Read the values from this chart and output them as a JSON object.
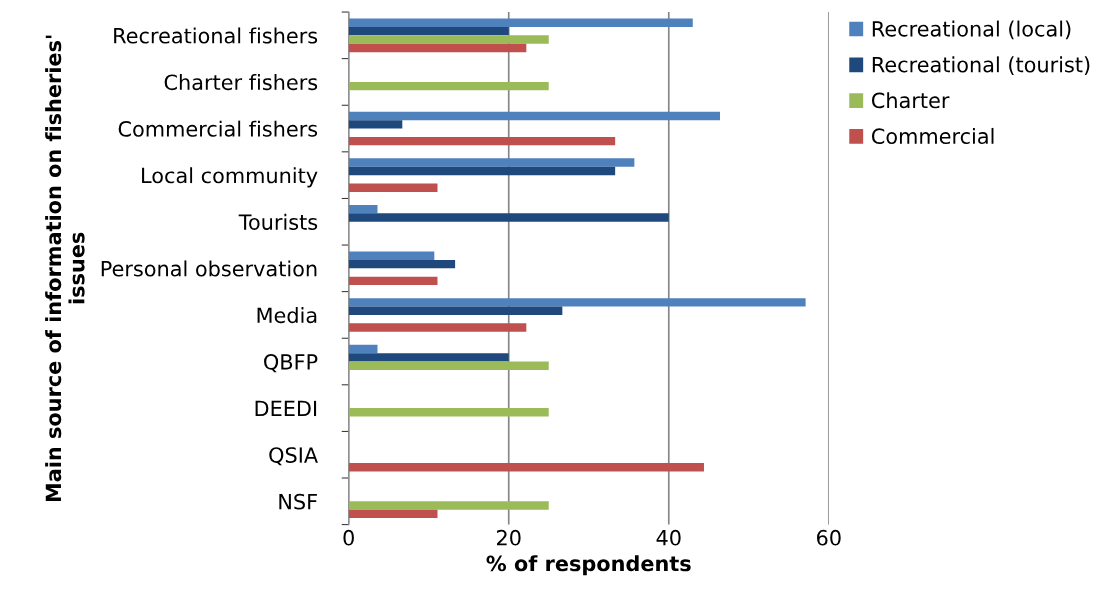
{
  "chart_data": {
    "type": "bar",
    "orientation": "horizontal",
    "xlabel": "% of respondents",
    "ylabel": "Main source of information on fisheries'\nissues",
    "categories": [
      "Recreational fishers",
      "Charter fishers",
      "Commercial fishers",
      "Local community",
      "Tourists",
      "Personal observation",
      "Media",
      "QBFP",
      "DEEDI",
      "QSIA",
      "NSF"
    ],
    "series": [
      {
        "name": "Recreational (local)",
        "color": "#4f81bd",
        "values": [
          43,
          null,
          46.4,
          35.7,
          3.6,
          10.7,
          57.1,
          3.6,
          null,
          null,
          null
        ]
      },
      {
        "name": "Recreational (tourist)",
        "color": "#1f497d",
        "values": [
          20,
          null,
          6.7,
          33.3,
          40,
          13.3,
          26.7,
          20,
          null,
          null,
          null
        ]
      },
      {
        "name": "Charter",
        "color": "#9bbb59",
        "values": [
          25,
          25,
          null,
          null,
          null,
          null,
          null,
          25,
          25,
          null,
          25
        ]
      },
      {
        "name": "Commercial",
        "color": "#c0504d",
        "values": [
          22.2,
          null,
          33.3,
          11.1,
          null,
          11.1,
          22.2,
          null,
          null,
          44.4,
          11.1
        ]
      }
    ],
    "xlim": [
      0,
      60
    ],
    "xticks": [
      0,
      20,
      40,
      60
    ],
    "grid": "x",
    "legend": "right"
  }
}
